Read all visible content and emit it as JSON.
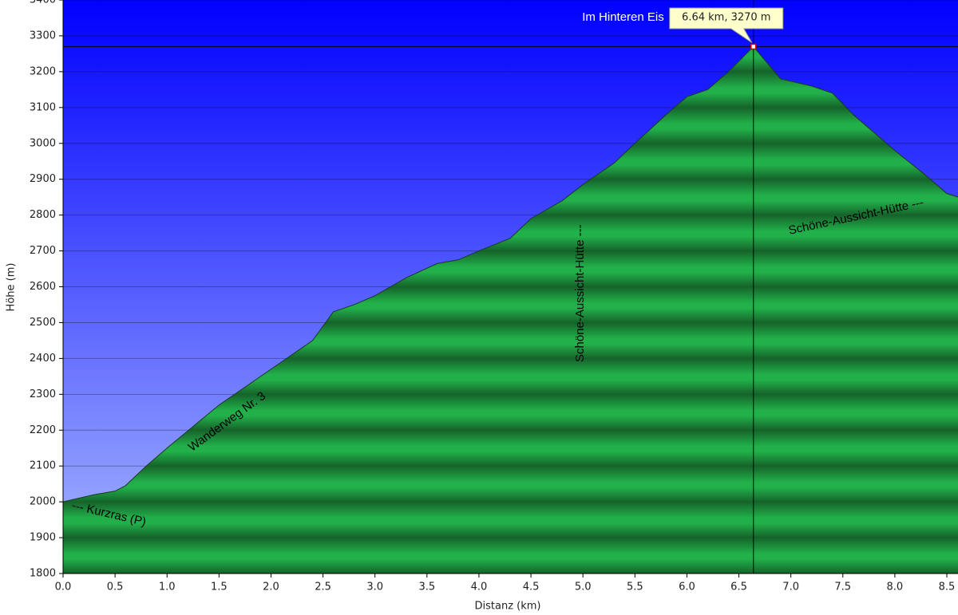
{
  "chart_data": {
    "type": "area",
    "x": [
      0,
      0.3,
      0.5,
      0.6,
      0.8,
      1.0,
      1.5,
      2.0,
      2.4,
      2.6,
      2.8,
      3.0,
      3.3,
      3.6,
      3.8,
      4.0,
      4.3,
      4.5,
      4.8,
      5.0,
      5.3,
      5.5,
      5.8,
      6.0,
      6.2,
      6.4,
      6.64,
      6.9,
      7.2,
      7.4,
      7.6,
      8.0,
      8.3,
      8.5,
      8.61
    ],
    "values": [
      2000,
      2020,
      2030,
      2045,
      2100,
      2150,
      2270,
      2370,
      2450,
      2530,
      2550,
      2575,
      2625,
      2665,
      2675,
      2700,
      2735,
      2790,
      2840,
      2885,
      2945,
      3000,
      3080,
      3130,
      3150,
      3200,
      3270,
      3180,
      3160,
      3140,
      3080,
      2980,
      2910,
      2860,
      2850
    ],
    "color": "#22b04a",
    "xlim": [
      0,
      8.61
    ],
    "ylim": [
      1800,
      3400
    ],
    "xticks": [
      {
        "value": 0,
        "label": "0.0"
      },
      0.5,
      {
        "value": 1,
        "label": "1.0"
      },
      1.5,
      {
        "value": 2,
        "label": "2.0"
      },
      2.5,
      {
        "value": 3,
        "label": "3.0"
      },
      3.5,
      {
        "value": 4,
        "label": "4.0"
      },
      4.5,
      {
        "value": 5,
        "label": "5.0"
      },
      5.5,
      {
        "value": 6,
        "label": "6.0"
      },
      6.5,
      {
        "value": 7,
        "label": "7.0"
      },
      7.5,
      {
        "value": 8,
        "label": "8.0"
      },
      8.5
    ],
    "yticks": [
      1800,
      1900,
      2000,
      2100,
      2200,
      2300,
      2400,
      2500,
      2600,
      2700,
      2800,
      2900,
      3000,
      3100,
      3200,
      3300,
      3400
    ],
    "grid": true,
    "xlabel": "Distanz  (km)",
    "ylabel": "Höhe (m)",
    "marker": {
      "name": "Im Hinteren Eis",
      "x": 6.64,
      "y": 3270,
      "label": "6.64 km, 3270 m"
    },
    "annotations": [
      "--- Kurzras (P)",
      "Wanderweg Nr. 3",
      "Schöne-Aussicht-Hütte ---",
      "Schöne-Aussicht-Hütte ---"
    ]
  }
}
